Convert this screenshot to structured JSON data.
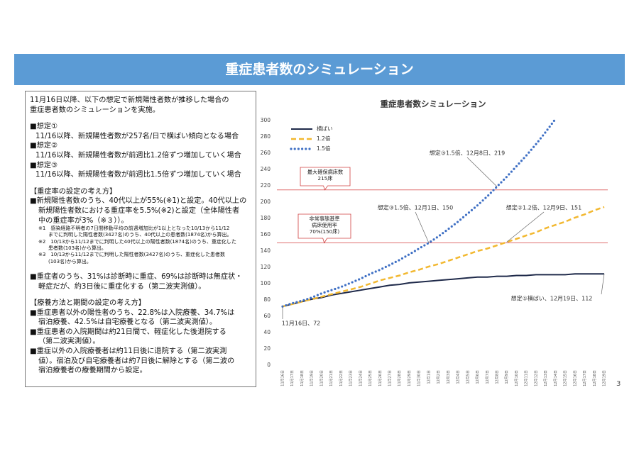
{
  "header": {
    "title": "重症患者数のシミュレーション"
  },
  "left_panel": {
    "intro": [
      "11月16日以降、以下の想定で新規陽性者数が推移した場合の",
      "重症患者数のシミュレーションを実施。"
    ],
    "scenarios": [
      {
        "label": "■想定①",
        "text": "11/16以降、新規陽性者数が257名/日で横ばい傾向となる場合"
      },
      {
        "label": "■想定②",
        "text": "11/16以降、新規陽性者数が前週比1.2倍ずつ増加していく場合"
      },
      {
        "label": "■想定③",
        "text": "11/16以降、新規陽性者数が前週比1.5倍ずつ増加していく場合"
      }
    ],
    "sections": [
      {
        "heading": "【重症率の設定の考え方】",
        "items": [
          [
            "■新規陽性者数のうち、40代以上が55%(※1)と設定。40代以上の",
            "新規陽性者数における重症率を5.5%(※2)と設定（全体陽性者",
            "中の重症率が3%（※３））。"
          ]
        ],
        "notes": [
          [
            "※1　感染経路不明者の7日間移動平均の前週増加比が1以上となった10/13から11/12",
            "までに判明した陽性者数(3427名)のうち、40代以上の患者数(1874名)から算出。"
          ],
          [
            "※2　10/13から11/12までに判明した40代以上の陽性者数(1874名)のうち、重症化した",
            "患者数(103名)から算出。"
          ],
          [
            "※3　10/13から11/12までに判明した陽性者数(3427名)のうち、重症化した患者数",
            "(103名)から算出。"
          ]
        ]
      },
      {
        "items": [
          [
            "■重症者のうち、31%は診断時に重症、69%は診断時は無症状・",
            "軽症だが、約3日後に重症化する（第二波実測値）。"
          ]
        ]
      },
      {
        "heading": "【療養方法と期間の設定の考え方】",
        "items": [
          [
            "■重症患者以外の陽性者のうち、22.8%は入院療養、34.7%は",
            "宿泊療養、42.5%は自宅療養となる（第二波実測値）。"
          ],
          [
            "■重症患者の入院期間は約21日間で、軽症化した後退院する",
            "（第二波実測値）。"
          ],
          [
            "■重症以外の入院療養者は約11日後に退院する（第二波実測",
            "値）。宿泊及び自宅療養者は約7日後に解除とする（第二波の",
            "宿泊療養者の療養期間から設定。"
          ]
        ]
      }
    ]
  },
  "chart_data": {
    "type": "line",
    "title": "重症患者数シミュレーション",
    "categories": [
      "11月16日",
      "11月17日",
      "11月18日",
      "11月19日",
      "11月20日",
      "11月21日",
      "11月22日",
      "11月23日",
      "11月24日",
      "11月25日",
      "11月26日",
      "11月27日",
      "11月28日",
      "11月29日",
      "11月30日",
      "12月1日",
      "12月2日",
      "12月3日",
      "12月4日",
      "12月5日",
      "12月6日",
      "12月7日",
      "12月8日",
      "12月9日",
      "12月10日",
      "12月11日",
      "12月12日",
      "12月13日",
      "12月14日",
      "12月15日",
      "12月16日",
      "12月17日",
      "12月18日",
      "12月19日"
    ],
    "series": [
      {
        "name": "横ばい",
        "color": "#1f2a4a",
        "values": [
          72,
          75,
          78,
          81,
          83,
          86,
          88,
          90,
          92,
          94,
          96,
          98,
          99,
          101,
          102,
          103,
          104,
          105,
          106,
          107,
          108,
          108,
          109,
          109,
          110,
          110,
          111,
          111,
          111,
          111,
          112,
          112,
          112,
          112
        ]
      },
      {
        "name": "1.2倍",
        "color": "#f2b830",
        "values": [
          72,
          75,
          78,
          81,
          84,
          87,
          90,
          93,
          96,
          100,
          104,
          107,
          110,
          114,
          117,
          121,
          124,
          128,
          132,
          136,
          140,
          143,
          147,
          151,
          155,
          159,
          163,
          168,
          172,
          176,
          181,
          185,
          190,
          194
        ]
      },
      {
        "name": "1.5倍",
        "color": "#3e6fc4",
        "values": [
          72,
          76,
          79,
          83,
          88,
          92,
          96,
          101,
          106,
          112,
          117,
          123,
          129,
          136,
          143,
          150,
          158,
          167,
          176,
          186,
          196,
          207,
          219,
          231,
          244,
          257,
          271,
          286,
          302,
          null,
          null,
          null,
          null,
          null
        ]
      }
    ],
    "ylim": [
      0,
      300
    ],
    "yticks": [
      0,
      20,
      40,
      60,
      80,
      100,
      120,
      140,
      160,
      180,
      200,
      220,
      240,
      260,
      280,
      300
    ],
    "reference_lines": [
      {
        "value": 215,
        "label": [
          "最大確保病床数",
          "215床"
        ]
      },
      {
        "value": 150,
        "label": [
          "非常事態基準",
          "病床使用率",
          "70%(150床)"
        ]
      }
    ],
    "annotations": [
      "想定③1.5倍、12月8日、219",
      "想定③1.5倍、12月1日、150",
      "想定②1.2倍、12月9日、151",
      "想定①横ばい、12月19日、112",
      "11月16日、72"
    ],
    "legend": "upper left"
  },
  "page_number": "3"
}
